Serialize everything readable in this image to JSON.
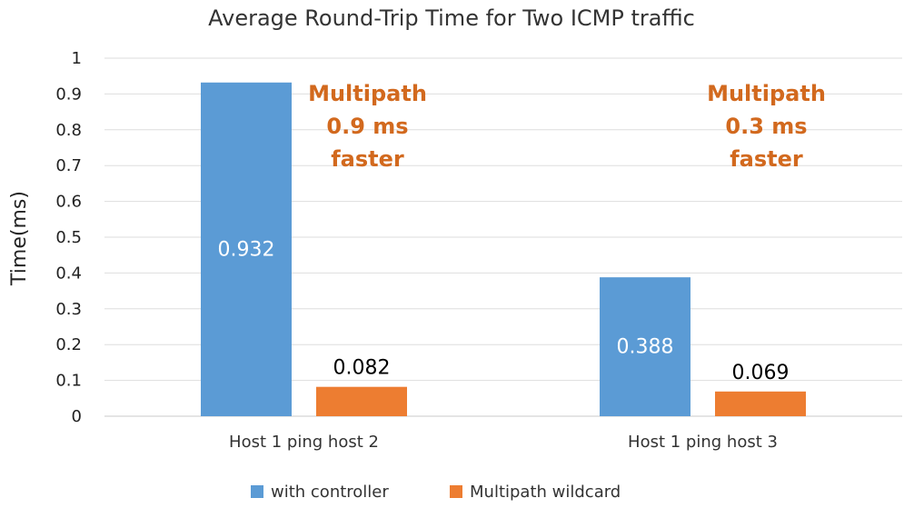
{
  "chart_data": {
    "type": "bar",
    "title": "Average Round-Trip Time for Two ICMP traffic",
    "xlabel": "",
    "ylabel": "Time(ms)",
    "ylim": [
      0,
      1
    ],
    "yticks": [
      "0",
      "0.1",
      "0.2",
      "0.3",
      "0.4",
      "0.5",
      "0.6",
      "0.7",
      "0.8",
      "0.9",
      "1"
    ],
    "grid": true,
    "legend_position": "bottom",
    "categories": [
      "Host 1 ping host 2",
      "Host 1 ping host 3"
    ],
    "series": [
      {
        "name": "with controller",
        "values": [
          0.932,
          0.388
        ],
        "color": "#5b9bd5",
        "labels": [
          "0.932",
          "0.388"
        ]
      },
      {
        "name": "Multipath wildcard",
        "values": [
          0.082,
          0.069
        ],
        "color": "#ed7d31",
        "labels": [
          "0.082",
          "0.069"
        ]
      }
    ],
    "annotations": [
      {
        "lines": [
          "Multipath",
          "0.9 ms",
          "faster"
        ],
        "category": 0
      },
      {
        "lines": [
          "Multipath",
          "0.3 ms",
          "faster"
        ],
        "category": 1
      }
    ],
    "annotation_color": "#d2691e"
  }
}
